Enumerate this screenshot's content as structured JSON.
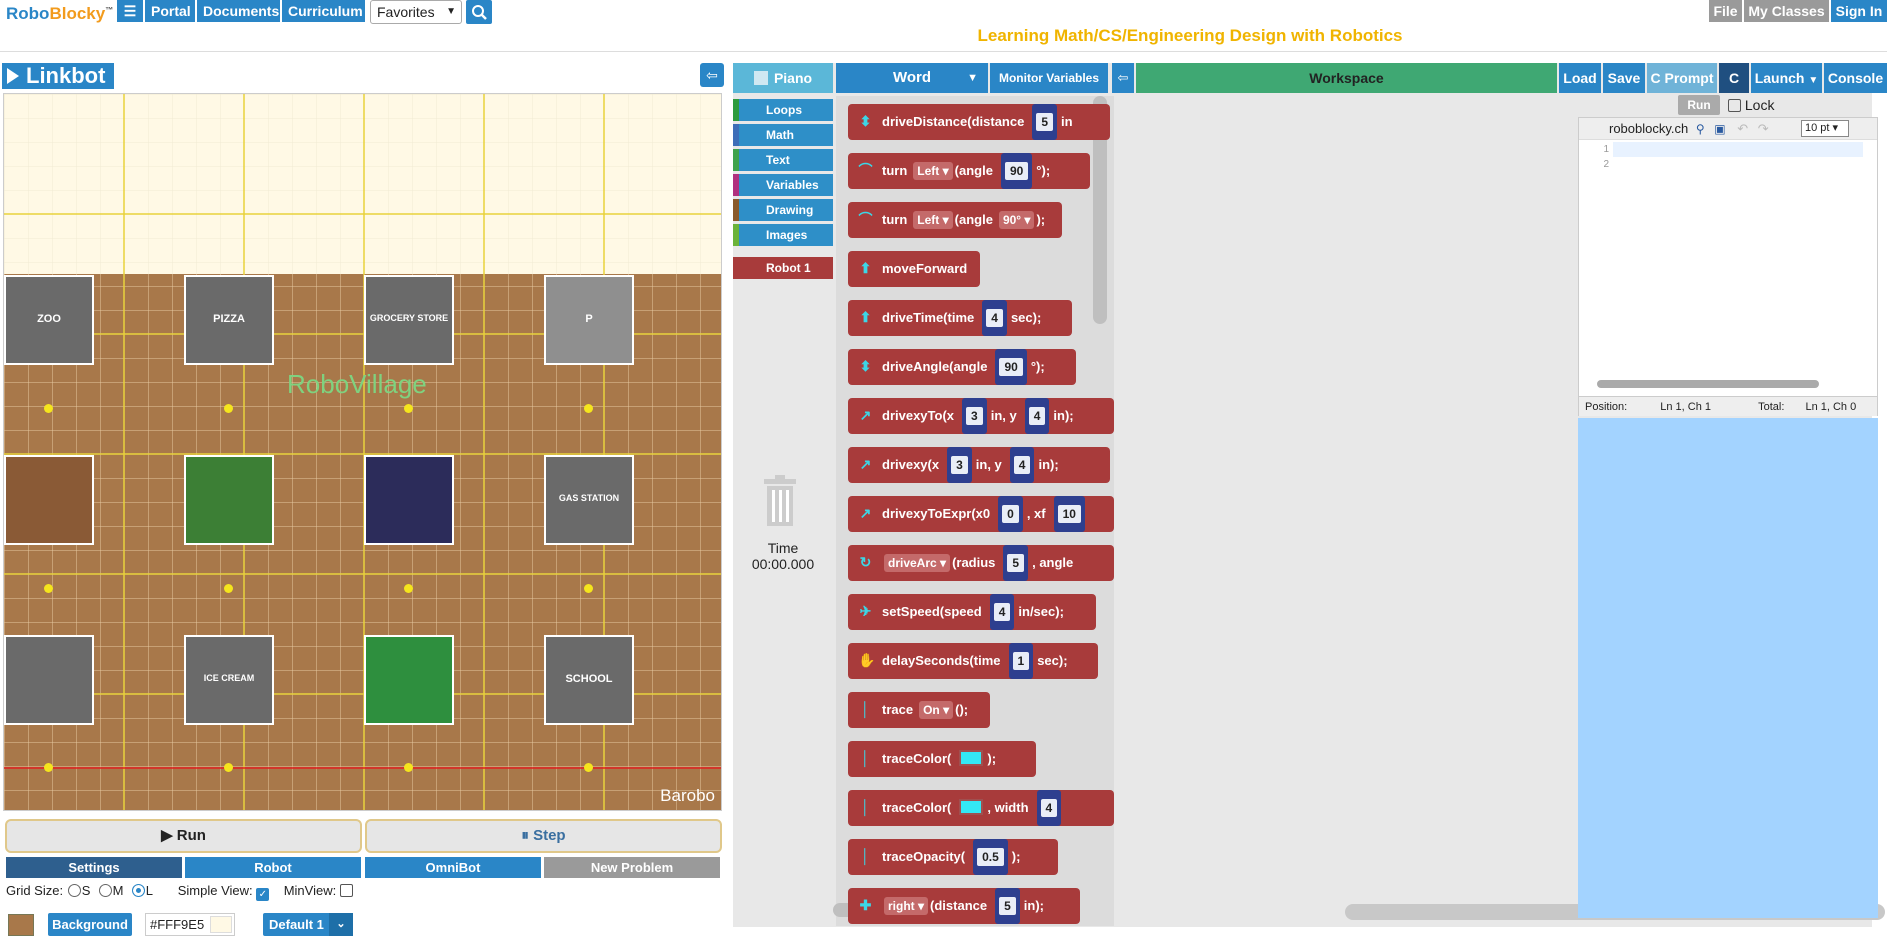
{
  "header": {
    "logo": {
      "robo": "Robo",
      "blocky": "Blocky",
      "tm": "™"
    },
    "nav": [
      {
        "label": "☰",
        "name": "menu-button"
      },
      {
        "label": "Portal",
        "name": "portal-link"
      },
      {
        "label": "Documents",
        "name": "documents-link"
      },
      {
        "label": "Curriculum",
        "name": "curriculum-link"
      }
    ],
    "favorites": "Favorites",
    "tagline": "Learning Math/CS/Engineering Design with Robotics",
    "right": {
      "file": "File",
      "my_classes": "My Classes",
      "sign_in": "Sign In"
    }
  },
  "left": {
    "linkbot": "Linkbot",
    "collapse_icon": "arrow-left-icon",
    "board": {
      "background": "#FFF9E5",
      "village_label": "RoboVillage",
      "watermark": "Barobo",
      "buildings": [
        {
          "label": "ZOO"
        },
        {
          "label": "PIZZA"
        },
        {
          "label": "GROCERY STORE"
        },
        {
          "label": "P"
        },
        {
          "label": ""
        },
        {
          "label": ""
        },
        {
          "label": ""
        },
        {
          "label": "GAS STATION"
        },
        {
          "label": ""
        },
        {
          "label": "ICE CREAM"
        },
        {
          "label": ""
        },
        {
          "label": "SCHOOL"
        }
      ]
    },
    "run": "▶ Run",
    "step": "⏸ Step",
    "tabs": [
      "Settings",
      "Robot",
      "OmniBot",
      "New Problem"
    ],
    "grid_size": "Grid Size:",
    "size_s": "S",
    "size_m": "M",
    "size_l": "L",
    "simple_view": "Simple View:",
    "minview": "MinView:",
    "background_btn": "Background",
    "hex": "#FFF9E5",
    "default": "Default 1"
  },
  "editor": {
    "piano": "Piano",
    "categories": [
      {
        "label": "Loops",
        "color": "#2e9b3e"
      },
      {
        "label": "Math",
        "color": "#3d6eb8"
      },
      {
        "label": "Text",
        "color": "#3fa34d"
      },
      {
        "label": "Variables",
        "color": "#b0307e"
      },
      {
        "label": "Drawing",
        "color": "#8a5a2b"
      },
      {
        "label": "Images",
        "color": "#6bb33a"
      }
    ],
    "robot": "Robot 1",
    "word": "Word",
    "monitor": "Monitor Variables",
    "workspace": "Workspace",
    "buttons": {
      "load": "Load",
      "save": "Save",
      "cprompt": "C Prompt",
      "c": "C",
      "launch": "Launch",
      "console": "Console"
    },
    "time_label": "Time",
    "time_value": "00:00.000",
    "blocks": [
      {
        "icon": "⬍",
        "parts": [
          "driveDistance(distance",
          "#5",
          "in"
        ]
      },
      {
        "icon": "⌒",
        "parts": [
          "turn",
          "^Left",
          "(angle",
          "#90",
          "°);"
        ]
      },
      {
        "icon": "⌒",
        "parts": [
          "turn",
          "^Left",
          "(angle",
          "^90°",
          ");"
        ]
      },
      {
        "icon": "⬆",
        "parts": [
          "moveForward"
        ]
      },
      {
        "icon": "⬆",
        "parts": [
          "driveTime(time",
          "#4",
          "sec);"
        ]
      },
      {
        "icon": "⬍",
        "parts": [
          "driveAngle(angle",
          "#90",
          "°);"
        ]
      },
      {
        "icon": "↗",
        "parts": [
          "drivexyTo(x",
          "#3",
          "in, y",
          "#4",
          "in);"
        ]
      },
      {
        "icon": "↗",
        "parts": [
          "drivexy(x",
          "#3",
          "in, y",
          "#4",
          "in);"
        ]
      },
      {
        "icon": "↗",
        "parts": [
          "drivexyToExpr(x0",
          "#0",
          ", xf",
          "#10"
        ]
      },
      {
        "icon": "↻",
        "parts": [
          "^driveArc",
          "(radius",
          "#5",
          ", angle"
        ]
      },
      {
        "icon": "✈",
        "parts": [
          "setSpeed(speed",
          "#4",
          "in/sec);"
        ]
      },
      {
        "icon": "✋",
        "parts": [
          "delaySeconds(time",
          "#1",
          "sec);"
        ]
      },
      {
        "icon": "│",
        "parts": [
          "trace",
          "^On",
          "();"
        ]
      },
      {
        "icon": "│",
        "parts": [
          "traceColor(",
          "@",
          ");"
        ]
      },
      {
        "icon": "│",
        "parts": [
          "traceColor(",
          "@",
          ", width",
          "#4"
        ]
      },
      {
        "icon": "│",
        "parts": [
          "traceOpacity(",
          "#0.5",
          ");"
        ]
      },
      {
        "icon": "✚",
        "parts": [
          "^right",
          "(distance",
          "#5",
          "in);"
        ]
      }
    ]
  },
  "code": {
    "run": "Run",
    "lock": "Lock",
    "site": "roboblocky.ch",
    "font_size": "10 pt",
    "lines": [
      "1",
      "2"
    ],
    "position_label": "Position:",
    "position_value": "Ln 1, Ch 1",
    "total_label": "Total:",
    "total_value": "Ln 1, Ch 0"
  }
}
